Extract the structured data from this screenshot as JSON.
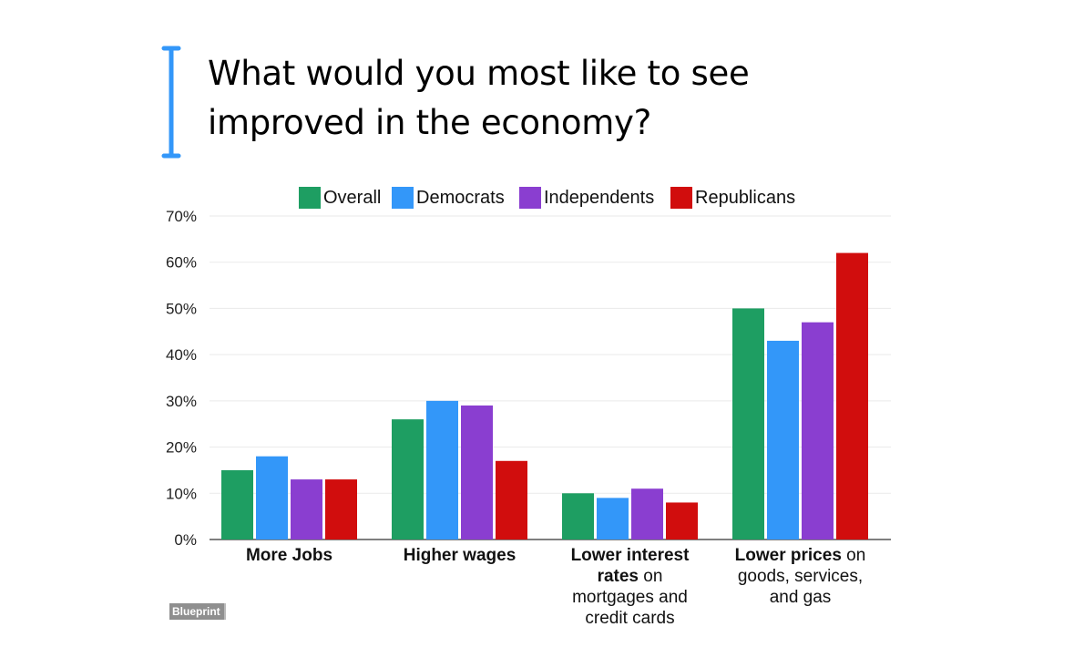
{
  "brand": {
    "label": "Blueprint"
  },
  "chart_data": {
    "type": "bar",
    "title": "What would you most like to see improved in the economy?",
    "xlabel": "",
    "ylabel": "",
    "ylim": [
      0,
      70
    ],
    "yticks": [
      "0%",
      "10%",
      "20%",
      "30%",
      "40%",
      "50%",
      "60%",
      "70%"
    ],
    "grid": true,
    "legend_position": "top",
    "categories": [
      {
        "bold": "More Jobs",
        "rest": ""
      },
      {
        "bold": "Higher wages",
        "rest": ""
      },
      {
        "bold": "Lower interest rates",
        "rest": "on mortgages and credit cards"
      },
      {
        "bold": "Lower prices",
        "rest": "on goods, services, and gas"
      }
    ],
    "series": [
      {
        "name": "Overall",
        "color": "#1e9e62",
        "values": [
          15,
          26,
          10,
          50
        ]
      },
      {
        "name": "Democrats",
        "color": "#3397f9",
        "values": [
          18,
          30,
          9,
          43
        ]
      },
      {
        "name": "Independents",
        "color": "#8a3ed0",
        "values": [
          13,
          29,
          11,
          47
        ]
      },
      {
        "name": "Republicans",
        "color": "#d10d0d",
        "values": [
          13,
          17,
          8,
          62
        ]
      }
    ]
  }
}
